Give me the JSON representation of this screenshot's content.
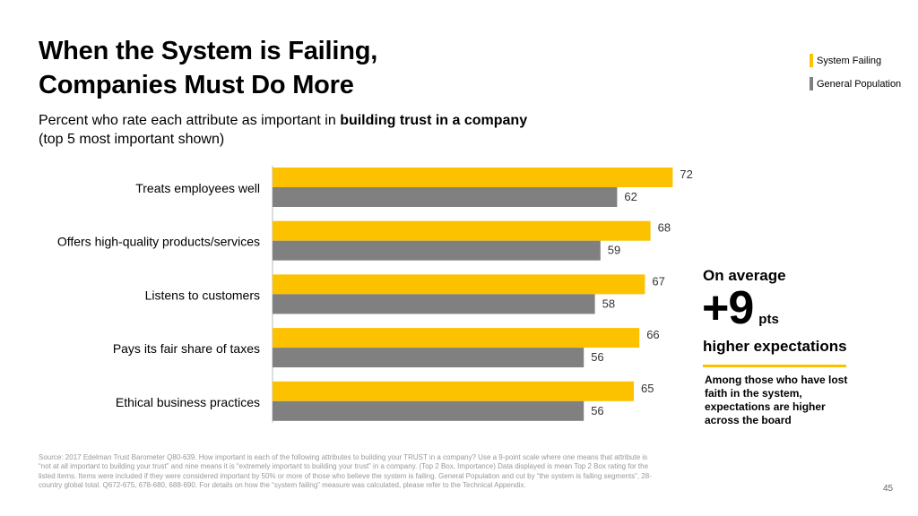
{
  "title_line1": "When the System is Failing,",
  "title_line2": "Companies Must Do More",
  "subtitle": {
    "prefix": "Percent who rate each attribute as important in ",
    "bold": "building trust in a company",
    "line2": "(top 5 most important shown)"
  },
  "legend": {
    "system_failing": "System Failing",
    "general_population": "General Population"
  },
  "colors": {
    "system_failing": "#FCC200",
    "general_population": "#808080"
  },
  "chart_data": {
    "type": "bar",
    "orientation": "horizontal",
    "categories": [
      "Treats employees well",
      "Offers high-quality products/services",
      "Listens to customers",
      "Pays its fair share of taxes",
      "Ethical business practices"
    ],
    "series": [
      {
        "name": "System Failing",
        "values": [
          72,
          68,
          67,
          66,
          65
        ]
      },
      {
        "name": "General Population",
        "values": [
          62,
          59,
          58,
          56,
          56
        ]
      }
    ],
    "xlim": [
      0,
      100
    ],
    "grid": false,
    "legend_position": "top-right"
  },
  "callout": {
    "line1": "On average",
    "big": "+9",
    "unit": "pts",
    "line3": "higher expectations",
    "note": "Among those who have lost faith in the system, expectations are higher across the board"
  },
  "footnote": "Source: 2017 Edelman Trust Barometer Q80-639. How important is each of the following attributes to building your TRUST in a company? Use a 9-point scale where one means that attribute is “not at all important to building your trust” and nine means it is “extremely important to building your trust” in a company. (Top 2 Box, Importance) Data displayed is mean Top 2 Box rating for the listed items. Items were included if they were considered important by 50% or more of those who believe the system is failing. General Population and cut by “the system is failing segments”, 28-country global total. Q672-675, 678-680, 688-690. For details on how the “system failing” measure was calculated, please refer to the Technical Appendix.",
  "page_number": "45"
}
